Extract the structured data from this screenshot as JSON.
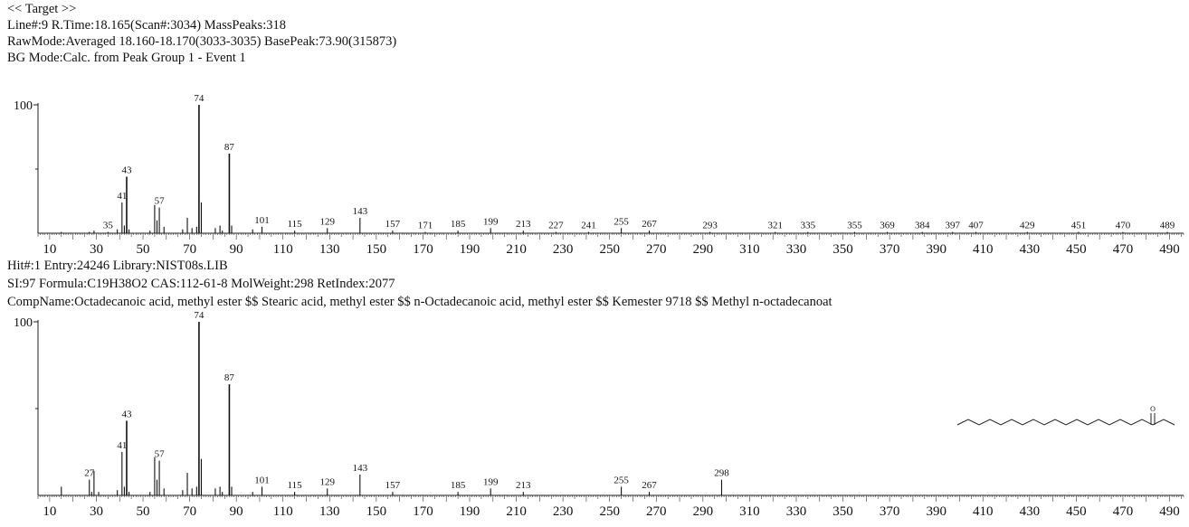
{
  "target": {
    "marker": "<< Target >>",
    "line1": "Line#:9   R.Time:18.165(Scan#:3034)   MassPeaks:318",
    "line2": "RawMode:Averaged 18.160-18.170(3033-3035) BasePeak:73.90(315873)",
    "line3": "BG Mode:Calc. from Peak  Group 1 - Event 1"
  },
  "hit": {
    "line1": "Hit#:1  Entry:24246  Library:NIST08s.LIB",
    "line2": "SI:97  Formula:C19H38O2  CAS:112-61-8  MolWeight:298  RetIndex:2077",
    "line3": "CompName:Octadecanoic acid, methyl ester $$ Stearic acid, methyl ester $$ n-Octadecanoic acid, methyl ester $$ Kemester 9718 $$ Methyl n-octadecanoat"
  },
  "structure": {
    "oxygen_label": "O"
  },
  "chart_data": [
    {
      "type": "bar",
      "ylabel": "100",
      "xlim": [
        5,
        496
      ],
      "ylim": [
        0,
        100
      ],
      "xticks": [
        10,
        30,
        50,
        70,
        90,
        110,
        130,
        150,
        170,
        190,
        210,
        230,
        250,
        270,
        290,
        310,
        330,
        350,
        370,
        390,
        410,
        430,
        450,
        470,
        490
      ],
      "peaks": [
        {
          "x": 15,
          "y": 1
        },
        {
          "x": 27,
          "y": 1
        },
        {
          "x": 29,
          "y": 2
        },
        {
          "x": 35,
          "y": 1,
          "label": "35"
        },
        {
          "x": 39,
          "y": 3
        },
        {
          "x": 41,
          "y": 24,
          "label": "41"
        },
        {
          "x": 42,
          "y": 6
        },
        {
          "x": 43,
          "y": 44,
          "label": "43"
        },
        {
          "x": 44,
          "y": 3
        },
        {
          "x": 53,
          "y": 2
        },
        {
          "x": 55,
          "y": 22
        },
        {
          "x": 56,
          "y": 10
        },
        {
          "x": 57,
          "y": 20,
          "label": "57"
        },
        {
          "x": 59,
          "y": 5
        },
        {
          "x": 67,
          "y": 3
        },
        {
          "x": 69,
          "y": 12
        },
        {
          "x": 71,
          "y": 4
        },
        {
          "x": 73,
          "y": 5
        },
        {
          "x": 74,
          "y": 100,
          "label": "74"
        },
        {
          "x": 75,
          "y": 24
        },
        {
          "x": 81,
          "y": 4
        },
        {
          "x": 83,
          "y": 6
        },
        {
          "x": 84,
          "y": 2
        },
        {
          "x": 87,
          "y": 62,
          "label": "87"
        },
        {
          "x": 88,
          "y": 6
        },
        {
          "x": 97,
          "y": 3
        },
        {
          "x": 101,
          "y": 5,
          "label": "101"
        },
        {
          "x": 115,
          "y": 2,
          "label": "115"
        },
        {
          "x": 129,
          "y": 4,
          "label": "129"
        },
        {
          "x": 143,
          "y": 12,
          "label": "143"
        },
        {
          "x": 157,
          "y": 2,
          "label": "157"
        },
        {
          "x": 171,
          "y": 1,
          "label": "171"
        },
        {
          "x": 185,
          "y": 2,
          "label": "185"
        },
        {
          "x": 199,
          "y": 4,
          "label": "199"
        },
        {
          "x": 213,
          "y": 2,
          "label": "213"
        },
        {
          "x": 227,
          "y": 1,
          "label": "227"
        },
        {
          "x": 241,
          "y": 1,
          "label": "241"
        },
        {
          "x": 255,
          "y": 4,
          "label": "255"
        },
        {
          "x": 267,
          "y": 2,
          "label": "267"
        },
        {
          "x": 293,
          "y": 1,
          "label": "293"
        },
        {
          "x": 321,
          "y": 1,
          "label": "321"
        },
        {
          "x": 335,
          "y": 1,
          "label": "335"
        },
        {
          "x": 355,
          "y": 1,
          "label": "355"
        },
        {
          "x": 369,
          "y": 1,
          "label": "369"
        },
        {
          "x": 384,
          "y": 1,
          "label": "384"
        },
        {
          "x": 397,
          "y": 1,
          "label": "397"
        },
        {
          "x": 407,
          "y": 1,
          "label": "407"
        },
        {
          "x": 429,
          "y": 1,
          "label": "429"
        },
        {
          "x": 451,
          "y": 1,
          "label": "451"
        },
        {
          "x": 470,
          "y": 1,
          "label": "470"
        },
        {
          "x": 489,
          "y": 1,
          "label": "489"
        }
      ]
    },
    {
      "type": "bar",
      "ylabel": "100",
      "xlim": [
        5,
        496
      ],
      "ylim": [
        0,
        100
      ],
      "xticks": [
        10,
        30,
        50,
        70,
        90,
        110,
        130,
        150,
        170,
        190,
        210,
        230,
        250,
        270,
        290,
        310,
        330,
        350,
        370,
        390,
        410,
        430,
        450,
        470,
        490
      ],
      "peaks": [
        {
          "x": 15,
          "y": 5
        },
        {
          "x": 27,
          "y": 9,
          "label": "27"
        },
        {
          "x": 28,
          "y": 2
        },
        {
          "x": 29,
          "y": 14
        },
        {
          "x": 31,
          "y": 2
        },
        {
          "x": 39,
          "y": 3
        },
        {
          "x": 41,
          "y": 25,
          "label": "41"
        },
        {
          "x": 42,
          "y": 5
        },
        {
          "x": 43,
          "y": 43,
          "label": "43"
        },
        {
          "x": 44,
          "y": 2
        },
        {
          "x": 53,
          "y": 2
        },
        {
          "x": 55,
          "y": 22
        },
        {
          "x": 56,
          "y": 9
        },
        {
          "x": 57,
          "y": 20,
          "label": "57"
        },
        {
          "x": 59,
          "y": 4
        },
        {
          "x": 67,
          "y": 3
        },
        {
          "x": 69,
          "y": 13
        },
        {
          "x": 71,
          "y": 4
        },
        {
          "x": 73,
          "y": 5
        },
        {
          "x": 74,
          "y": 100,
          "label": "74"
        },
        {
          "x": 75,
          "y": 21
        },
        {
          "x": 81,
          "y": 4
        },
        {
          "x": 83,
          "y": 5
        },
        {
          "x": 84,
          "y": 2
        },
        {
          "x": 87,
          "y": 64,
          "label": "87"
        },
        {
          "x": 88,
          "y": 5
        },
        {
          "x": 97,
          "y": 2
        },
        {
          "x": 101,
          "y": 5,
          "label": "101"
        },
        {
          "x": 115,
          "y": 2,
          "label": "115"
        },
        {
          "x": 129,
          "y": 4,
          "label": "129"
        },
        {
          "x": 143,
          "y": 12,
          "label": "143"
        },
        {
          "x": 157,
          "y": 2,
          "label": "157"
        },
        {
          "x": 185,
          "y": 2,
          "label": "185"
        },
        {
          "x": 199,
          "y": 4,
          "label": "199"
        },
        {
          "x": 213,
          "y": 2,
          "label": "213"
        },
        {
          "x": 255,
          "y": 5,
          "label": "255"
        },
        {
          "x": 267,
          "y": 2,
          "label": "267"
        },
        {
          "x": 298,
          "y": 9,
          "label": "298"
        }
      ]
    }
  ]
}
